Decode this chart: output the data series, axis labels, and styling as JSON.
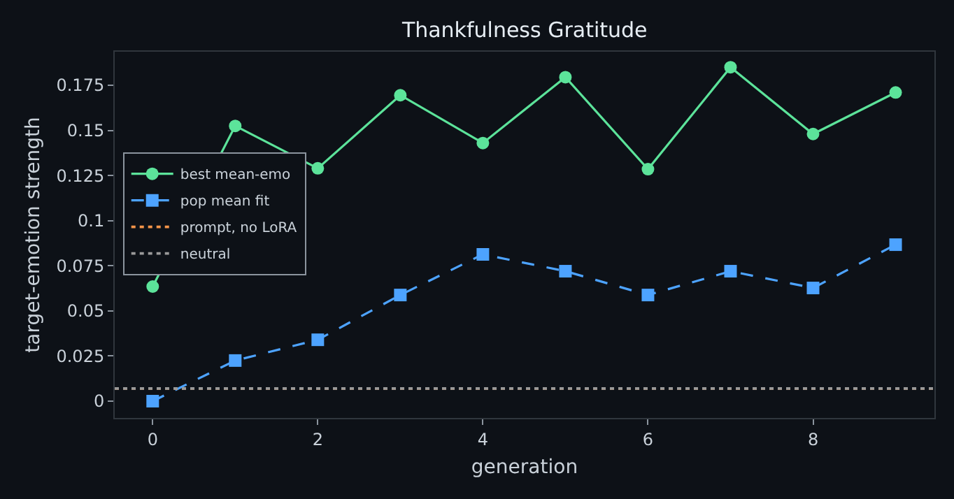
{
  "chart_data": {
    "type": "line",
    "title": "Thankfulness Gratitude",
    "xlabel": "generation",
    "ylabel": "target-emotion strength",
    "x": [
      0,
      1,
      2,
      3,
      4,
      5,
      6,
      7,
      8,
      9
    ],
    "series": [
      {
        "name": "best mean-emo",
        "color": "#5ce39a",
        "marker": "circle",
        "line_style": "solid",
        "values": [
          0.0635,
          0.1525,
          0.129,
          0.1695,
          0.143,
          0.1795,
          0.1285,
          0.185,
          0.148,
          0.171
        ]
      },
      {
        "name": "pop mean fit",
        "color": "#4da3ff",
        "marker": "square",
        "line_style": "dashed",
        "values": [
          0,
          0.0225,
          0.034,
          0.0588,
          0.0813,
          0.072,
          0.0588,
          0.072,
          0.0627,
          0.0867
        ]
      }
    ],
    "ref_lines": [
      {
        "axis": "y",
        "value": 0.007,
        "label": "prompt, no LoRA",
        "color": "#f5954a",
        "line_style": "dotted"
      },
      {
        "axis": "y",
        "value": 0.007,
        "label": "neutral",
        "color": "#9a9a9a",
        "line_style": "dotted"
      }
    ],
    "xlim": [
      -0.46,
      9.47
    ],
    "xticks": [
      0,
      2,
      4,
      6,
      8
    ],
    "ylim": [
      -0.0093,
      0.1936
    ],
    "yticks": [
      0,
      0.025,
      0.05,
      0.075,
      0.1,
      0.125,
      0.15,
      0.175
    ],
    "grid": false,
    "legend": "left"
  }
}
